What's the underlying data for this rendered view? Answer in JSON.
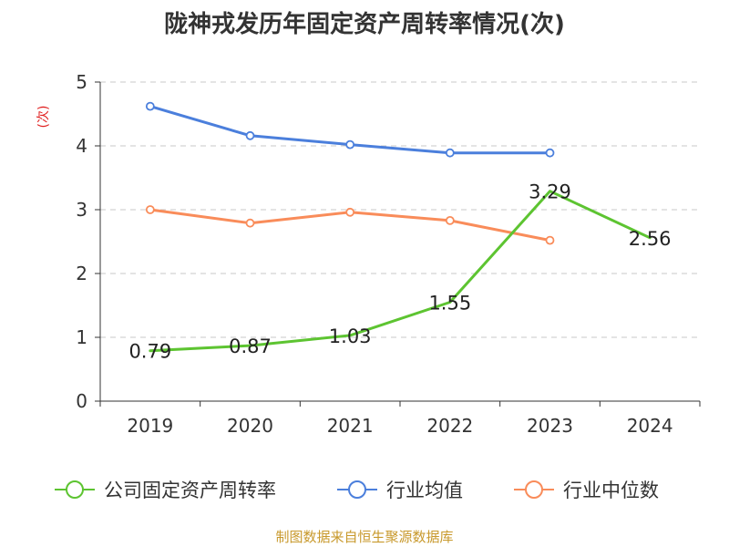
{
  "chart_data": {
    "type": "line",
    "title": "陇神戎发历年固定资产周转率情况(次)",
    "xlabel": "",
    "ylabel": "(次)",
    "categories": [
      "2019",
      "2020",
      "2021",
      "2022",
      "2023",
      "2024"
    ],
    "ylim": [
      0,
      5
    ],
    "yticks": [
      0,
      1,
      2,
      3,
      4,
      5
    ],
    "grid": true,
    "legend_position": "bottom",
    "series": [
      {
        "name": "公司固定资产周转率",
        "color": "#5dc431",
        "values": [
          0.79,
          0.87,
          1.03,
          1.55,
          3.29,
          2.56
        ],
        "labels": [
          "0.79",
          "0.87",
          "1.03",
          "1.55",
          "3.29",
          "2.56"
        ],
        "show_labels": true,
        "marker": false
      },
      {
        "name": "行业均值",
        "color": "#4b7fdc",
        "values": [
          4.62,
          4.16,
          4.02,
          3.89,
          3.89,
          null
        ],
        "show_labels": false,
        "marker": true
      },
      {
        "name": "行业中位数",
        "color": "#f98c5a",
        "values": [
          3.0,
          2.79,
          2.96,
          2.83,
          2.52,
          null
        ],
        "show_labels": false,
        "marker": true
      }
    ]
  },
  "source": "制图数据来自恒生聚源数据库"
}
